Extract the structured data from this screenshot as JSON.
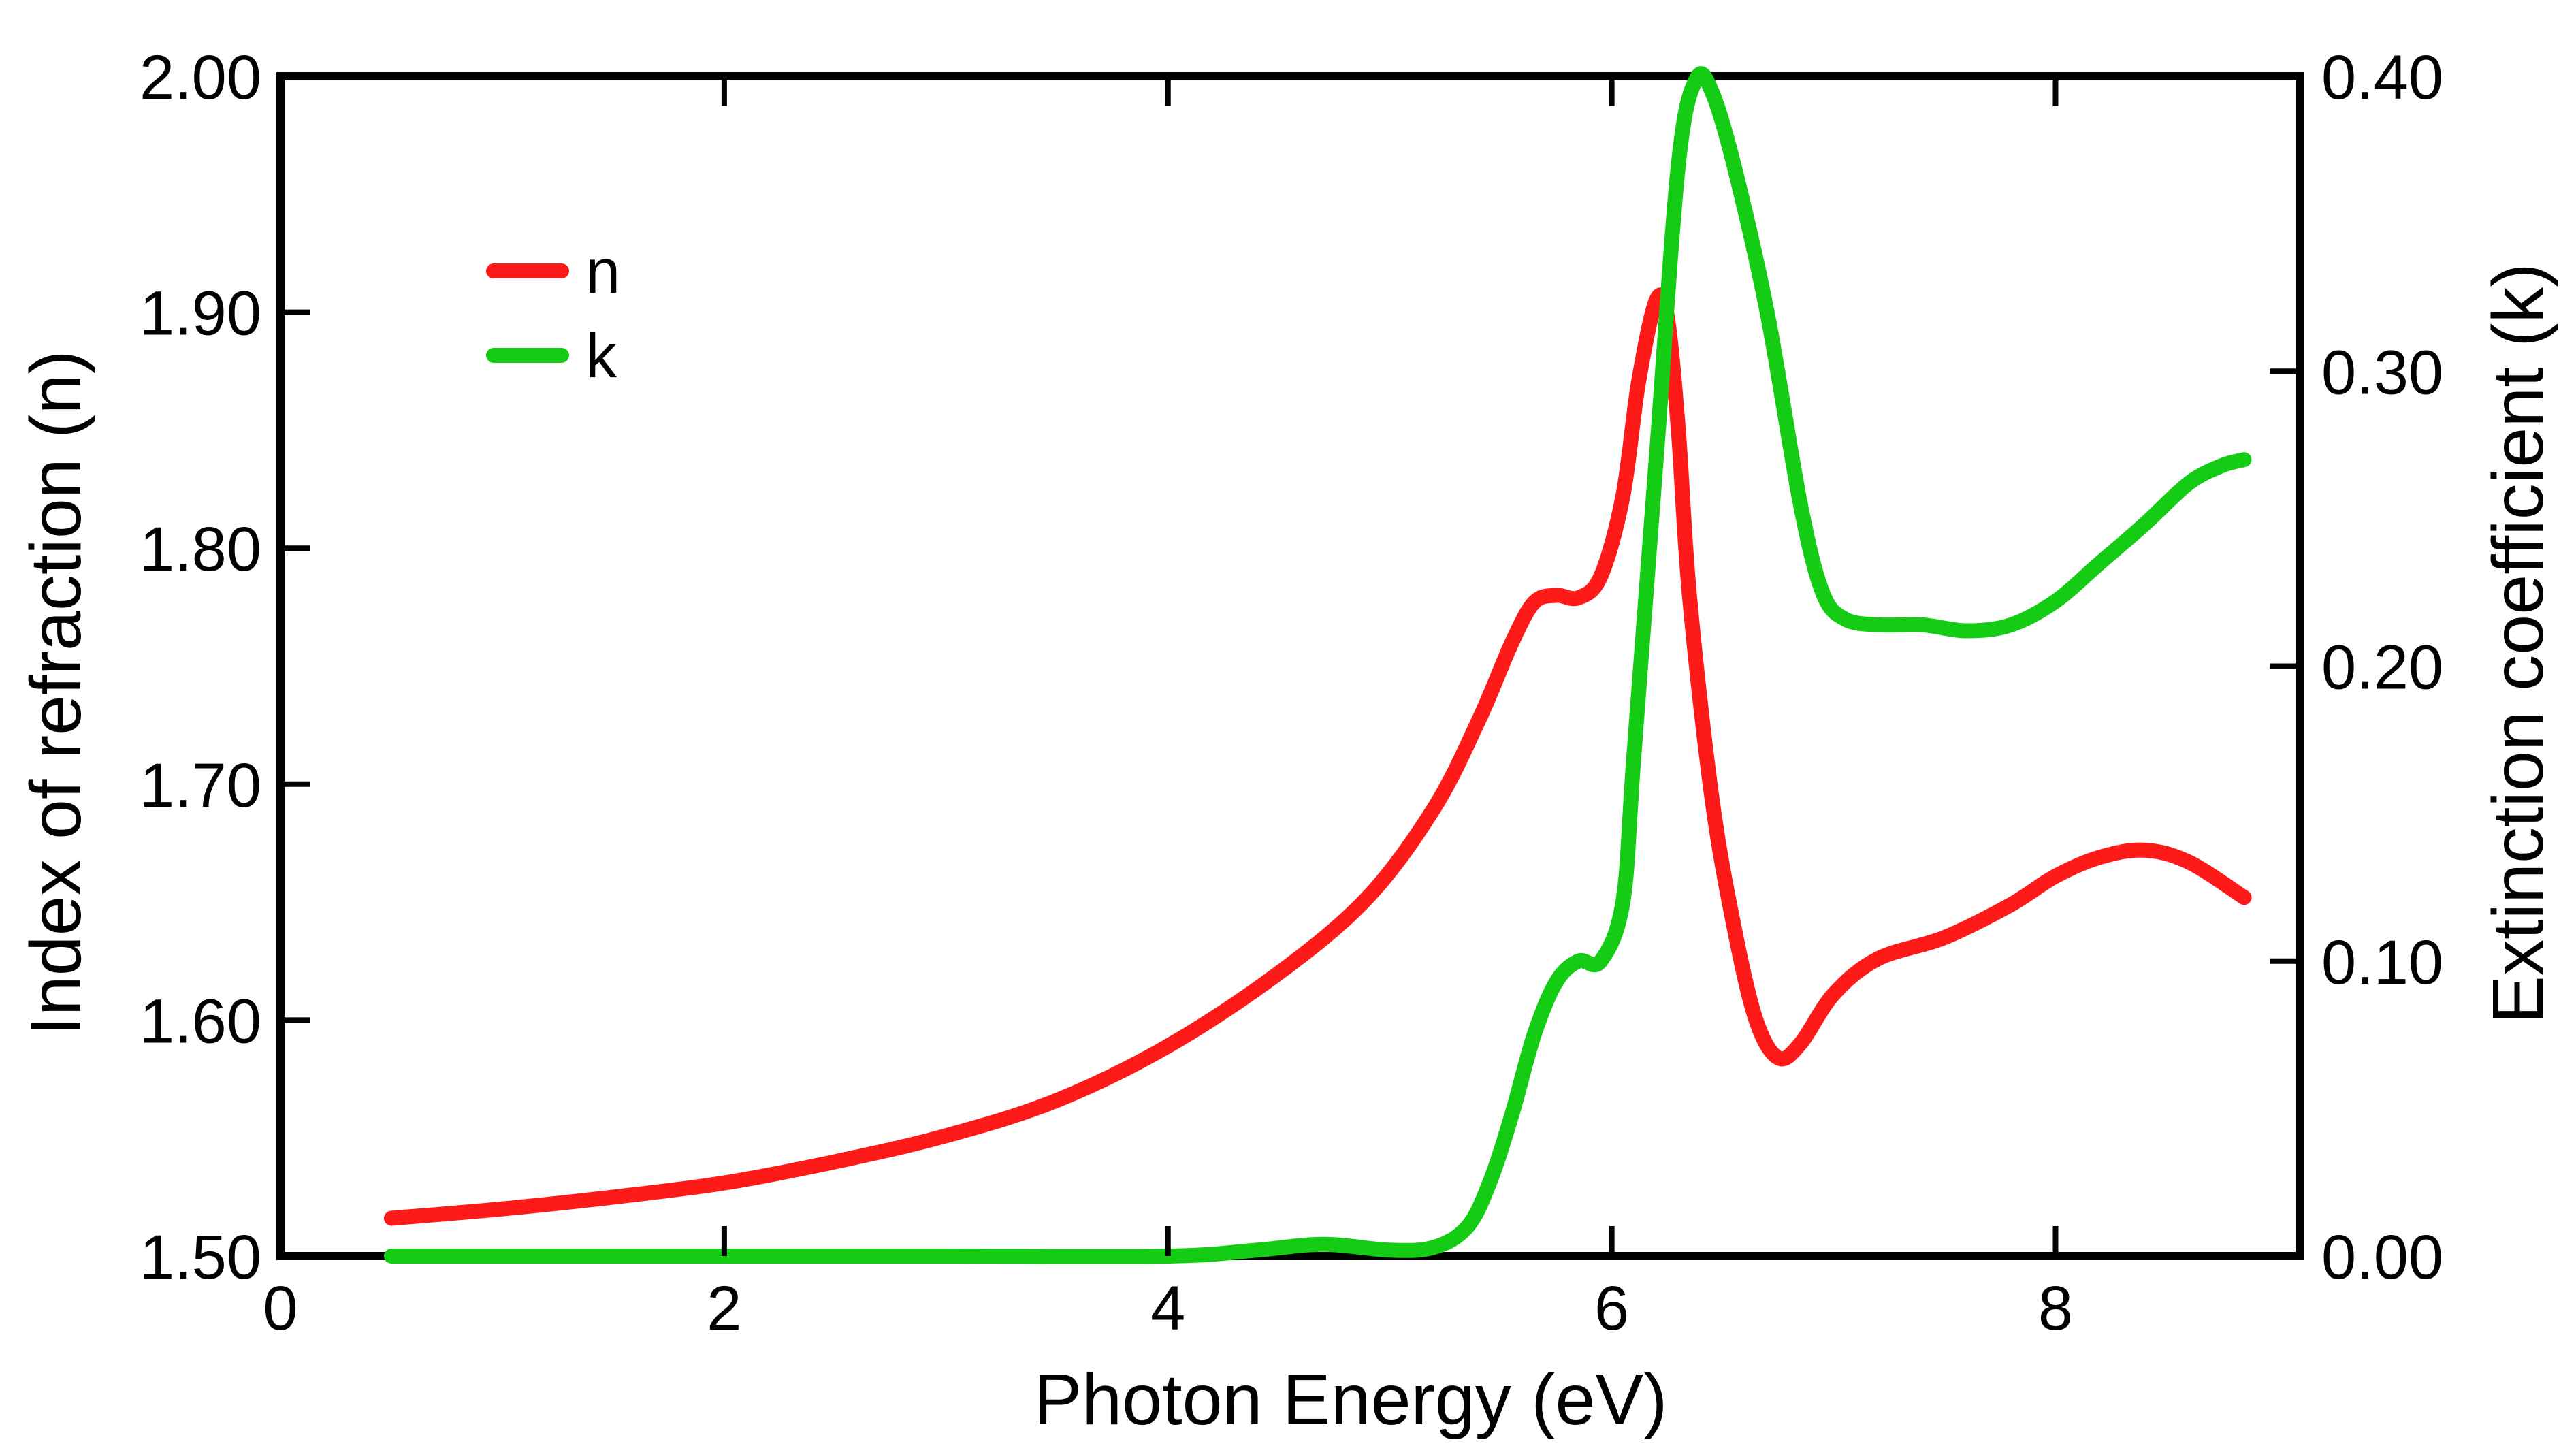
{
  "chart_data": {
    "type": "line",
    "xlabel": "Photon Energy (eV)",
    "ylabel_left": "Index of refraction (n)",
    "ylabel_right": "Extinction coefficient (k)",
    "xlim": [
      0,
      9.1
    ],
    "ylim_left": [
      1.5,
      2.0
    ],
    "ylim_right": [
      0.0,
      0.4
    ],
    "x_ticks": [
      "0",
      "2",
      "4",
      "6",
      "8"
    ],
    "y_ticks_left": [
      "1.50",
      "1.60",
      "1.70",
      "1.80",
      "1.90",
      "2.00"
    ],
    "y_ticks_right": [
      "0.00",
      "0.10",
      "0.20",
      "0.30",
      "0.40"
    ],
    "grid": false,
    "legend_position": "top-left",
    "series": [
      {
        "name": "n",
        "color": "#ff1a1a",
        "axis": "left",
        "points": [
          [
            0.5,
            1.516
          ],
          [
            1.0,
            1.52
          ],
          [
            1.5,
            1.525
          ],
          [
            2.0,
            1.531
          ],
          [
            2.5,
            1.54
          ],
          [
            3.0,
            1.551
          ],
          [
            3.5,
            1.566
          ],
          [
            4.0,
            1.589
          ],
          [
            4.5,
            1.62
          ],
          [
            4.9,
            1.652
          ],
          [
            5.2,
            1.69
          ],
          [
            5.4,
            1.727
          ],
          [
            5.55,
            1.76
          ],
          [
            5.65,
            1.777
          ],
          [
            5.75,
            1.78
          ],
          [
            5.85,
            1.779
          ],
          [
            5.95,
            1.788
          ],
          [
            6.05,
            1.822
          ],
          [
            6.12,
            1.87
          ],
          [
            6.2,
            1.905
          ],
          [
            6.25,
            1.898
          ],
          [
            6.3,
            1.85
          ],
          [
            6.35,
            1.78
          ],
          [
            6.45,
            1.695
          ],
          [
            6.55,
            1.64
          ],
          [
            6.65,
            1.6
          ],
          [
            6.75,
            1.584
          ],
          [
            6.85,
            1.59
          ],
          [
            7.0,
            1.611
          ],
          [
            7.2,
            1.626
          ],
          [
            7.5,
            1.635
          ],
          [
            7.8,
            1.649
          ],
          [
            8.0,
            1.661
          ],
          [
            8.2,
            1.669
          ],
          [
            8.4,
            1.672
          ],
          [
            8.6,
            1.667
          ],
          [
            8.85,
            1.652
          ]
        ]
      },
      {
        "name": "k",
        "color": "#14cc14",
        "axis": "right",
        "points": [
          [
            0.5,
            0.0
          ],
          [
            1.0,
            0.0
          ],
          [
            2.0,
            0.0
          ],
          [
            3.0,
            0.0
          ],
          [
            4.0,
            0.0
          ],
          [
            4.4,
            0.002
          ],
          [
            4.7,
            0.004
          ],
          [
            5.0,
            0.002
          ],
          [
            5.2,
            0.003
          ],
          [
            5.35,
            0.01
          ],
          [
            5.45,
            0.025
          ],
          [
            5.55,
            0.048
          ],
          [
            5.65,
            0.075
          ],
          [
            5.75,
            0.093
          ],
          [
            5.85,
            0.1
          ],
          [
            5.95,
            0.1
          ],
          [
            6.05,
            0.12
          ],
          [
            6.1,
            0.17
          ],
          [
            6.2,
            0.27
          ],
          [
            6.3,
            0.37
          ],
          [
            6.38,
            0.399
          ],
          [
            6.45,
            0.395
          ],
          [
            6.55,
            0.37
          ],
          [
            6.7,
            0.32
          ],
          [
            6.85,
            0.255
          ],
          [
            6.95,
            0.225
          ],
          [
            7.05,
            0.216
          ],
          [
            7.2,
            0.214
          ],
          [
            7.4,
            0.214
          ],
          [
            7.6,
            0.212
          ],
          [
            7.8,
            0.214
          ],
          [
            8.0,
            0.222
          ],
          [
            8.2,
            0.235
          ],
          [
            8.4,
            0.248
          ],
          [
            8.6,
            0.262
          ],
          [
            8.75,
            0.268
          ],
          [
            8.85,
            0.27
          ]
        ]
      }
    ]
  }
}
